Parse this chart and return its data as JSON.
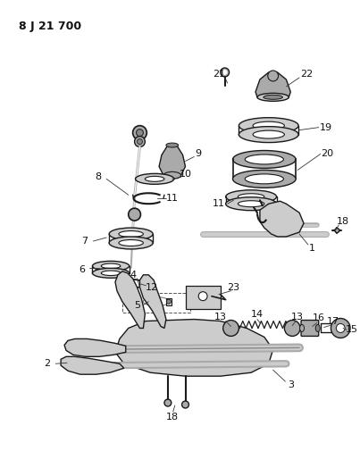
{
  "title": "8 J 21 700",
  "bg_color": "#ffffff",
  "line_color": "#1a1a1a",
  "label_color": "#111111",
  "fig_width": 4.03,
  "fig_height": 5.33,
  "dpi": 100
}
